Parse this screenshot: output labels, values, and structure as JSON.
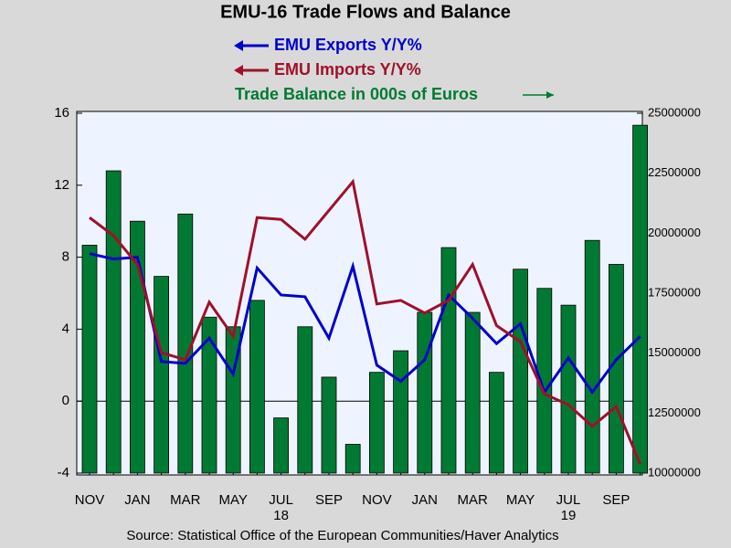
{
  "chart_data": {
    "type": "bar-line",
    "title": "EMU-16 Trade Flows and Balance",
    "source": "Source:  Statistical Office of the European Communities/Haver Analytics",
    "categories": [
      "NOV",
      null,
      "JAN",
      null,
      "MAR",
      null,
      "MAY",
      null,
      "JUL",
      null,
      "SEP",
      null,
      "NOV",
      null,
      "JAN",
      null,
      "MAR",
      null,
      "MAY",
      null,
      "JUL",
      null,
      "SEP",
      null
    ],
    "years": [
      "18",
      "19"
    ],
    "series": [
      {
        "name": "EMU Exports Y/Y%",
        "color": "#0000cc",
        "kind": "line",
        "axis": "y",
        "values": [
          8.2,
          7.9,
          8.0,
          2.2,
          2.1,
          3.5,
          1.5,
          7.4,
          5.9,
          5.8,
          3.5,
          7.5,
          2.0,
          1.1,
          2.3,
          5.9,
          4.6,
          3.2,
          4.3,
          0.5,
          2.4,
          0.5,
          2.3,
          3.6
        ]
      },
      {
        "name": "EMU Imports Y/Y%",
        "color": "#a0102a",
        "kind": "line",
        "axis": "y",
        "values": [
          10.2,
          9.2,
          7.6,
          2.7,
          2.3,
          5.5,
          3.6,
          10.2,
          10.1,
          9.0,
          10.6,
          12.2,
          5.4,
          5.6,
          4.9,
          5.6,
          7.6,
          4.2,
          3.3,
          0.4,
          -0.2,
          -1.4,
          -0.3,
          -3.5
        ]
      },
      {
        "name": "Trade Balance in 000s of Euros",
        "color": "#007a33",
        "kind": "bar",
        "axis": "y2",
        "values": [
          19500000,
          22600000,
          20500000,
          18200000,
          20800000,
          16500000,
          16100000,
          17200000,
          12300000,
          16100000,
          14000000,
          11200000,
          14200000,
          15100000,
          16700000,
          19400000,
          16700000,
          14200000,
          18500000,
          17700000,
          17000000,
          19700000,
          18700000,
          24500000
        ]
      }
    ],
    "ylim": [
      -4,
      16
    ],
    "yticks": [
      -4,
      0,
      4,
      8,
      12,
      16
    ],
    "y2lim": [
      10000000,
      25000000
    ],
    "y2ticks": [
      10000000,
      12500000,
      15000000,
      17500000,
      20000000,
      22500000,
      25000000
    ]
  }
}
